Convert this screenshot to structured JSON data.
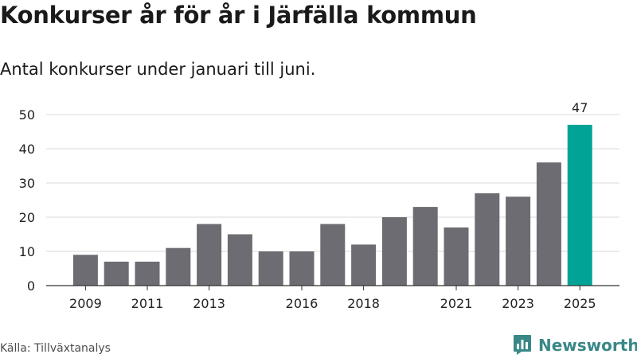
{
  "title": "Konkurser år för år i Järfälla kommun",
  "subtitle": "Antal konkurser under januari till juni.",
  "source": "Källa: Tillväxtanalys",
  "brand": {
    "name": "Newsworthy",
    "icon": "newsworthy-logo-icon"
  },
  "colors": {
    "bar": "#6d6c72",
    "highlight": "#00a396",
    "grid": "#d9d9d9",
    "axis": "#333333"
  },
  "chart_data": {
    "type": "bar",
    "categories": [
      "2009",
      "2010",
      "2011",
      "2012",
      "2013",
      "2014",
      "2015",
      "2016",
      "2017",
      "2018",
      "2019",
      "2020",
      "2021",
      "2022",
      "2023",
      "2024",
      "2025"
    ],
    "x_tick_labels": [
      "2009",
      "2011",
      "2013",
      "2016",
      "2018",
      "2021",
      "2023",
      "2025"
    ],
    "values": [
      9,
      7,
      7,
      11,
      18,
      15,
      10,
      10,
      18,
      12,
      20,
      23,
      17,
      27,
      26,
      36,
      47
    ],
    "highlight_category": "2025",
    "data_labels": [
      {
        "category": "2025",
        "text": "47"
      }
    ],
    "ylim": [
      0,
      50
    ],
    "y_ticks": [
      0,
      10,
      20,
      30,
      40,
      50
    ],
    "grid": "horizontal",
    "xlabel": "",
    "ylabel": ""
  }
}
